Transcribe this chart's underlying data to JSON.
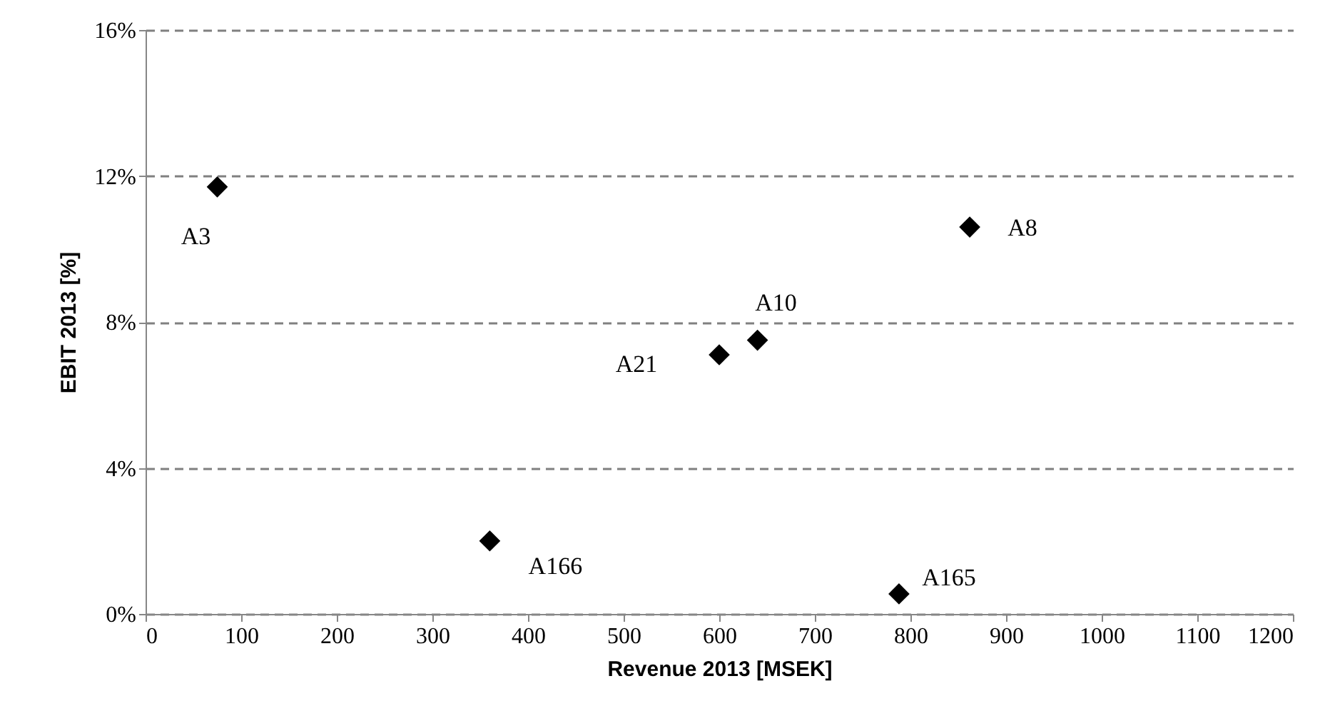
{
  "chart_data": {
    "type": "scatter",
    "xlabel": "Revenue 2013  [MSEK]",
    "ylabel": "EBIT 2013  [%]",
    "series": [
      {
        "color": "#000000",
        "x": [
          75,
          862,
          640,
          600,
          360,
          788
        ],
        "values": [
          11.7,
          10.6,
          7.5,
          7.1,
          2.0,
          0.55
        ]
      }
    ],
    "annotations": [
      {
        "text": "A3",
        "x": 75,
        "y": 11.7
      },
      {
        "text": "A8",
        "x": 862,
        "y": 10.6
      },
      {
        "text": "A10",
        "x": 640,
        "y": 7.5
      },
      {
        "text": "A21",
        "x": 600,
        "y": 7.1
      },
      {
        "text": "A166",
        "x": 360,
        "y": 2.0
      },
      {
        "text": "A165",
        "x": 788,
        "y": 0.55
      }
    ],
    "xlim": [
      0,
      1200
    ],
    "xticks": [
      0,
      100,
      200,
      300,
      400,
      500,
      600,
      700,
      800,
      900,
      1000,
      1100,
      1200
    ],
    "ylim": [
      0,
      16
    ],
    "yticks": [
      {
        "value": 0,
        "label": "0%"
      },
      {
        "value": 4,
        "label": "4%"
      },
      {
        "value": 8,
        "label": "8%"
      },
      {
        "value": 12,
        "label": "12%"
      },
      {
        "value": 16,
        "label": "16%"
      }
    ],
    "grid": "y",
    "marker": "diamond"
  }
}
